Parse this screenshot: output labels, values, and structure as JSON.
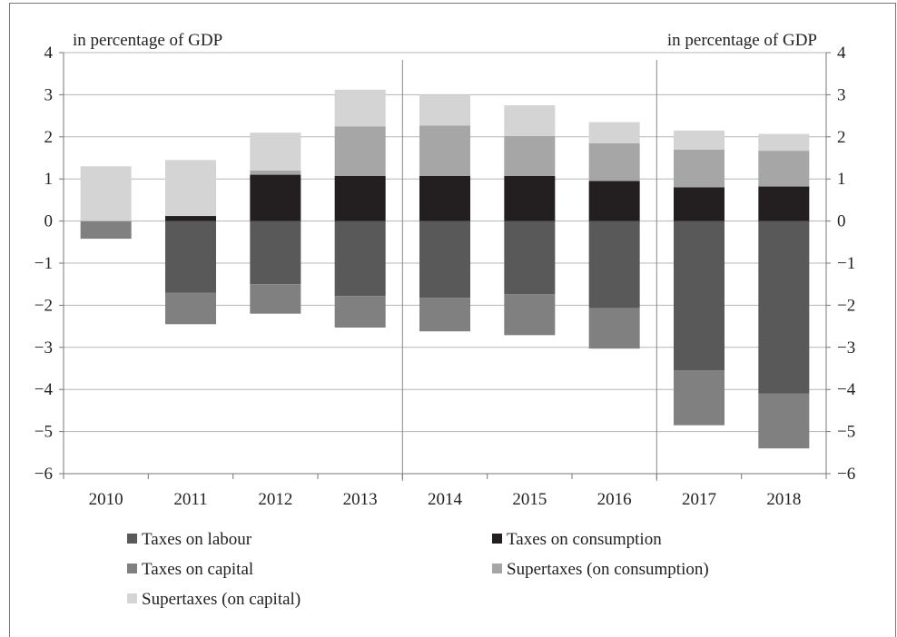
{
  "chart_data": {
    "type": "bar",
    "stacked": true,
    "categories": [
      "2010",
      "2011",
      "2012",
      "2013",
      "2014",
      "2015",
      "2016",
      "2017",
      "2018"
    ],
    "ylabel_left": "in percentage of GDP",
    "ylabel_right": "in percentage of GDP",
    "ylim": [
      -6,
      4
    ],
    "yticks": [
      "4",
      "3",
      "2",
      "1",
      "0",
      "−1",
      "−2",
      "−3",
      "−4",
      "−5",
      "−6"
    ],
    "ytick_values": [
      4,
      3,
      2,
      1,
      0,
      -1,
      -2,
      -3,
      -4,
      -5,
      -6
    ],
    "grid": true,
    "legend_position": "bottom",
    "series": [
      {
        "name": "Taxes on labour",
        "color": "#595959",
        "values": [
          0,
          -1.7,
          -1.5,
          -1.78,
          -1.82,
          -1.74,
          -2.07,
          -3.55,
          -4.1
        ]
      },
      {
        "name": "Taxes on consumption",
        "color": "#231f20",
        "values": [
          0,
          0.12,
          1.1,
          1.07,
          1.07,
          1.07,
          0.95,
          0.8,
          0.82
        ]
      },
      {
        "name": "Taxes on capital",
        "color": "#808080",
        "values": [
          -0.42,
          -0.75,
          -0.7,
          -0.75,
          -0.8,
          -0.97,
          -0.96,
          -1.3,
          -1.3
        ]
      },
      {
        "name": "Supertaxes (on consumption)",
        "color": "#a6a6a6",
        "values": [
          0,
          0,
          0.1,
          1.18,
          1.2,
          0.95,
          0.9,
          0.9,
          0.85
        ]
      },
      {
        "name": "Supertaxes (on capital)",
        "color": "#d4d4d4",
        "values": [
          1.3,
          1.33,
          0.9,
          0.87,
          0.73,
          0.73,
          0.5,
          0.45,
          0.4
        ]
      }
    ],
    "dividers_after": [
      "2013",
      "2016"
    ]
  },
  "legend_layout": [
    [
      "Taxes on labour",
      "Taxes on consumption"
    ],
    [
      "Taxes on capital",
      "Supertaxes (on consumption)"
    ],
    [
      "Supertaxes (on capital)"
    ]
  ]
}
